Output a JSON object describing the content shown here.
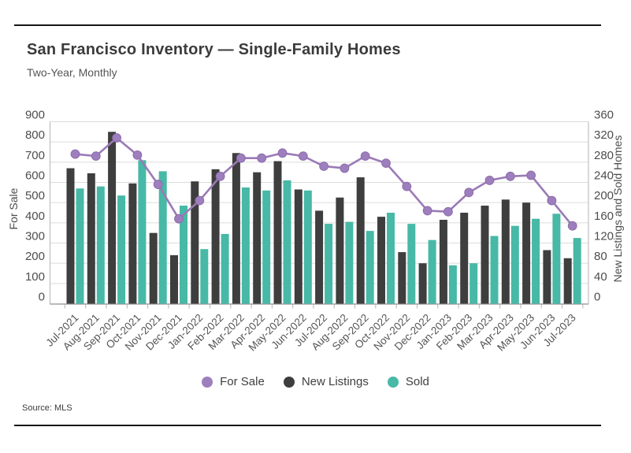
{
  "header": {
    "title": "San Francisco Inventory — Single-Family Homes",
    "subtitle": "Two-Year, Monthly"
  },
  "footer": {
    "source": "Source: MLS"
  },
  "legend": [
    {
      "label": "For Sale",
      "color": "#9e7fbe"
    },
    {
      "label": "New Listings",
      "color": "#3e3e3e"
    },
    {
      "label": "Sold",
      "color": "#47b9a6"
    }
  ],
  "colors": {
    "line": "#9b7ab6",
    "marker_fill": "#9e7fbe",
    "marker_stroke": "#8d6cab",
    "bar_dark": "#3e3e3e",
    "bar_teal": "#47b9a6",
    "gridline": "#dcdcdc",
    "axis_line": "#b5b5b5",
    "tick_text": "#4d4d4d"
  },
  "chart_data": {
    "type": "combo-bar-line",
    "title": "San Francisco Inventory — Single-Family Homes",
    "subtitle": "Two-Year, Monthly",
    "categories": [
      "Jul-2021",
      "Aug-2021",
      "Sep-2021",
      "Oct-2021",
      "Nov-2021",
      "Dec-2021",
      "Jan-2022",
      "Feb-2022",
      "Mar-2022",
      "Apr-2022",
      "May-2022",
      "Jun-2022",
      "Jul-2022",
      "Aug-2022",
      "Sep-2022",
      "Oct-2022",
      "Nov-2022",
      "Dec-2022",
      "Jan-2023",
      "Feb-2023",
      "Mar-2023",
      "Apr-2023",
      "May-2023",
      "Jun-2023",
      "Jul-2023"
    ],
    "series": [
      {
        "name": "For Sale",
        "type": "line",
        "axis": "left",
        "values": [
          740,
          730,
          820,
          735,
          590,
          420,
          510,
          630,
          720,
          720,
          745,
          730,
          680,
          670,
          730,
          695,
          580,
          460,
          455,
          550,
          610,
          630,
          635,
          510,
          385
        ]
      },
      {
        "name": "New Listings",
        "type": "bar",
        "axis": "right",
        "values": [
          268,
          258,
          340,
          238,
          140,
          96,
          242,
          266,
          298,
          260,
          282,
          226,
          184,
          210,
          250,
          172,
          102,
          80,
          166,
          180,
          194,
          206,
          200,
          106,
          90
        ]
      },
      {
        "name": "Sold",
        "type": "bar",
        "axis": "right",
        "values": [
          228,
          232,
          214,
          284,
          262,
          194,
          108,
          138,
          230,
          224,
          244,
          224,
          158,
          162,
          144,
          180,
          158,
          126,
          76,
          80,
          134,
          154,
          168,
          178,
          130
        ]
      }
    ],
    "left_axis": {
      "label": "For Sale",
      "min": 0,
      "max": 900,
      "step": 100
    },
    "right_axis": {
      "label": "New Listings and Sold Homes",
      "min": 0,
      "max": 360,
      "step": 40
    },
    "grid": true,
    "legend_position": "bottom",
    "x_label_rotation": -45
  }
}
